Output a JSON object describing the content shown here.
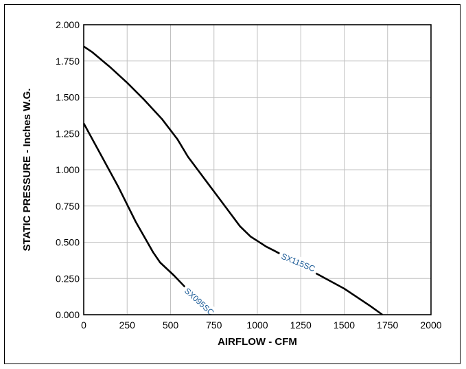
{
  "chart_data": {
    "type": "line",
    "xlabel": "AIRFLOW - CFM",
    "ylabel": "STATIC PRESSURE - Inches W.G.",
    "xlim": [
      0,
      2000
    ],
    "ylim": [
      0,
      2.0
    ],
    "x_ticks": [
      "0",
      "250",
      "500",
      "750",
      "1000",
      "1250",
      "1500",
      "1750",
      "2000"
    ],
    "y_ticks": [
      "0.000",
      "0.250",
      "0.500",
      "0.750",
      "1.000",
      "1.250",
      "1.500",
      "1.750",
      "2.000"
    ],
    "grid": true,
    "series": [
      {
        "name": "SX095SC",
        "points": [
          [
            0,
            1.32
          ],
          [
            100,
            1.1
          ],
          [
            200,
            0.88
          ],
          [
            300,
            0.64
          ],
          [
            400,
            0.43
          ],
          [
            440,
            0.36
          ],
          [
            520,
            0.27
          ],
          [
            600,
            0.17
          ],
          [
            680,
            0.06
          ],
          [
            730,
            0.0
          ]
        ],
        "label_at": [
          665,
          0.09
        ],
        "label_angle_deg": 42
      },
      {
        "name": "SX115SC",
        "points": [
          [
            0,
            1.85
          ],
          [
            50,
            1.81
          ],
          [
            150,
            1.71
          ],
          [
            250,
            1.6
          ],
          [
            350,
            1.48
          ],
          [
            450,
            1.35
          ],
          [
            540,
            1.21
          ],
          [
            600,
            1.09
          ],
          [
            700,
            0.93
          ],
          [
            800,
            0.77
          ],
          [
            900,
            0.61
          ],
          [
            960,
            0.54
          ],
          [
            1050,
            0.47
          ],
          [
            1100,
            0.44
          ],
          [
            1300,
            0.31
          ],
          [
            1500,
            0.18
          ],
          [
            1650,
            0.06
          ],
          [
            1720,
            0.0
          ]
        ],
        "label_at": [
          1235,
          0.36
        ],
        "label_angle_deg": 22
      }
    ],
    "line_color": "#000000",
    "label_color": "#1a5a96",
    "grid_color": "#c0c0c0"
  }
}
